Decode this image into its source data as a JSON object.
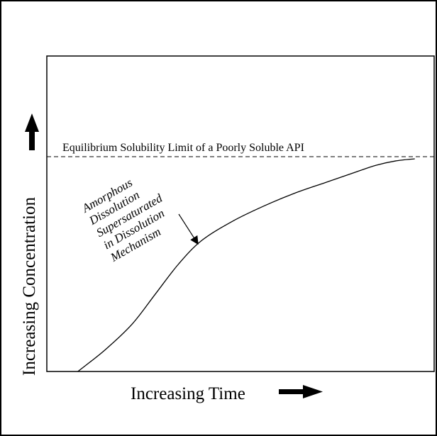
{
  "chart_data": {
    "type": "line",
    "title": "",
    "xlabel": "Increasing Time",
    "ylabel": "Increasing Concentration",
    "x_ticks": false,
    "y_ticks": false,
    "grid": false,
    "series": [
      {
        "x": [
          0.08,
          0.15,
          0.22,
          0.28,
          0.34,
          0.4,
          0.48,
          0.56,
          0.64,
          0.72,
          0.8,
          0.85,
          0.9,
          0.95
        ],
        "y": [
          0.0,
          0.1,
          0.22,
          0.36,
          0.5,
          0.61,
          0.7,
          0.77,
          0.83,
          0.88,
          0.93,
          0.96,
          0.98,
          0.99
        ]
      }
    ],
    "reference_line": {
      "style": "dashed",
      "y": 1.0,
      "label": "Equilibrium Solubility Limit of a Poorly Soluble API"
    },
    "annotation": {
      "text_lines": [
        "Amorphous",
        "Dissolution",
        "Supersaturated",
        "in Dissolution",
        "Mechanism"
      ],
      "arrow_target": {
        "x": 0.4,
        "y": 0.61
      }
    },
    "arrows": {
      "y_axis": "up",
      "x_axis": "right"
    }
  }
}
